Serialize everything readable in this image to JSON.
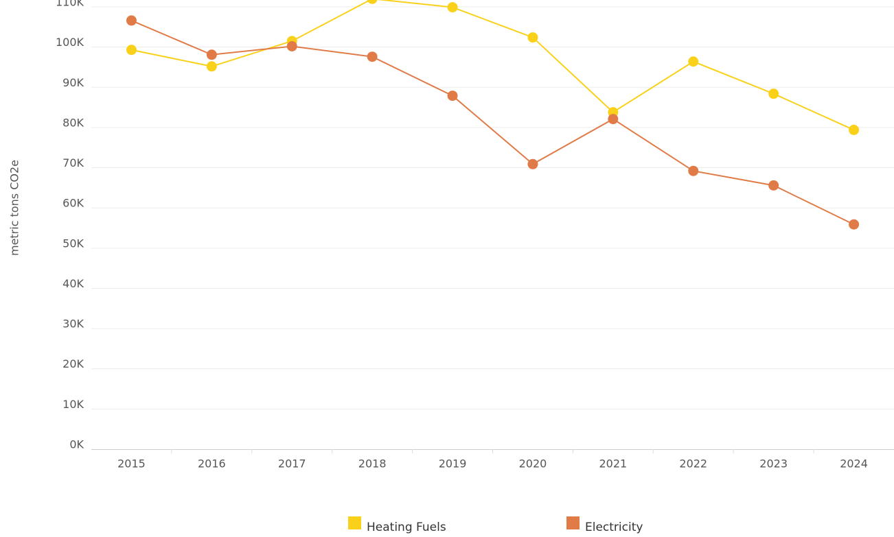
{
  "chart_data": {
    "type": "line",
    "y_label": "metric tons CO2e",
    "categories": [
      "2015",
      "2016",
      "2017",
      "2018",
      "2019",
      "2020",
      "2021",
      "2022",
      "2023",
      "2024"
    ],
    "series": [
      {
        "name": "Heating Fuels",
        "color": "#f9d11a",
        "values": [
          99300,
          95200,
          101500,
          112000,
          109900,
          102400,
          83800,
          96400,
          88400,
          79400
        ]
      },
      {
        "name": "Electricity",
        "color": "#e07b47",
        "values": [
          106600,
          98100,
          100200,
          97600,
          87900,
          70900,
          82100,
          69200,
          65600,
          55900
        ]
      }
    ],
    "ylim": [
      0,
      110000
    ],
    "yticks": [
      {
        "value": 0,
        "label": "0K"
      },
      {
        "value": 10000,
        "label": "10K"
      },
      {
        "value": 20000,
        "label": "20K"
      },
      {
        "value": 30000,
        "label": "30K"
      },
      {
        "value": 40000,
        "label": "40K"
      },
      {
        "value": 50000,
        "label": "50K"
      },
      {
        "value": 60000,
        "label": "60K"
      },
      {
        "value": 70000,
        "label": "70K"
      },
      {
        "value": 80000,
        "label": "80K"
      },
      {
        "value": 90000,
        "label": "90K"
      },
      {
        "value": 100000,
        "label": "100K"
      },
      {
        "value": 110000,
        "label": "110K"
      }
    ],
    "grid": true,
    "legend": "bottom"
  }
}
